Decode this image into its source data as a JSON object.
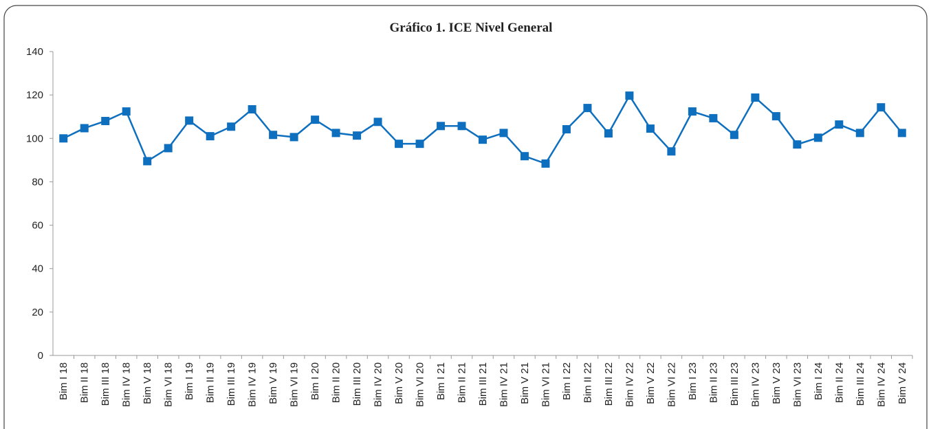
{
  "chart_data": {
    "type": "line",
    "title": "Gráfico 1. ICE Nivel General",
    "categories": [
      "Bim I 18",
      "Bim II 18",
      "Bim III 18",
      "Bim IV 18",
      "Bim V 18",
      "Bim VI 18",
      "Bim I 19",
      "Bim II 19",
      "Bim III 19",
      "Bim IV 19",
      "Bim V 19",
      "Bim VI 19",
      "Bim I 20",
      "Bim II 20",
      "Bim III 20",
      "Bim IV 20",
      "Bim V 20",
      "Bim VI 20",
      "Bim I 21",
      "Bim II 21",
      "Bim III 21",
      "Bim IV 21",
      "Bim V 21",
      "Bim VI 21",
      "Bim I 22",
      "Bim II 22",
      "Bim III 22",
      "Bim IV 22",
      "Bim V 22",
      "Bim VI 22",
      "Bim I 23",
      "Bim II 23",
      "Bim III 23",
      "Bim IV 23",
      "Bim V 23",
      "Bim VI 23",
      "Bim I 24",
      "Bim II 24",
      "Bim III 24",
      "Bim IV 24",
      "Bim V 24"
    ],
    "values": [
      100,
      104.7,
      108,
      112.4,
      89.5,
      95.5,
      108.2,
      101,
      105.4,
      113.4,
      101.6,
      100.6,
      108.6,
      102.5,
      101.3,
      107.6,
      97.5,
      97.5,
      105.7,
      105.7,
      99.4,
      102.5,
      91.8,
      88.4,
      104.2,
      114,
      102.3,
      119.7,
      104.5,
      94,
      112.4,
      109.3,
      101.6,
      118.8,
      110.2,
      97.2,
      100.3,
      106.4,
      102.5,
      114.3,
      102.5
    ],
    "color": "#0e6fbf",
    "ylim": [
      0,
      140
    ],
    "yticks": [
      0,
      20,
      40,
      60,
      80,
      100,
      120,
      140
    ]
  }
}
